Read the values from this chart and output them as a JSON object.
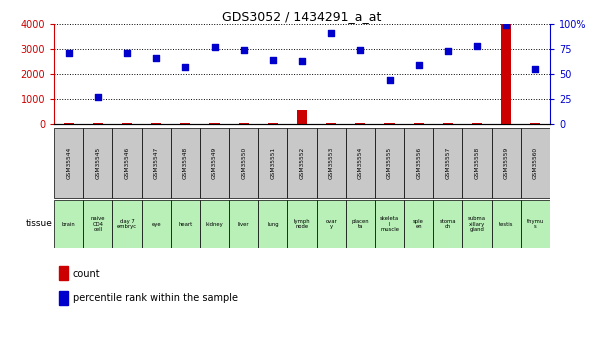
{
  "title": "GDS3052 / 1434291_a_at",
  "samples": [
    "GSM35544",
    "GSM35545",
    "GSM35546",
    "GSM35547",
    "GSM35548",
    "GSM35549",
    "GSM35550",
    "GSM35551",
    "GSM35552",
    "GSM35553",
    "GSM35554",
    "GSM35555",
    "GSM35556",
    "GSM35557",
    "GSM35558",
    "GSM35559",
    "GSM35560"
  ],
  "tissues": [
    "brain",
    "naive\nCD4\ncell",
    "day 7\nembryc",
    "eye",
    "heart",
    "kidney",
    "liver",
    "lung",
    "lymph\nnode",
    "ovar\ny",
    "placen\nta",
    "skeleta\nl\nmuscle",
    "sple\nen",
    "stoma\nch",
    "subma\nxillary\ngland",
    "testis",
    "thymu\ns"
  ],
  "count_values": [
    30,
    30,
    30,
    30,
    30,
    30,
    30,
    30,
    550,
    30,
    30,
    30,
    30,
    30,
    30,
    4000,
    30
  ],
  "percentile_values": [
    71,
    27,
    71,
    66,
    57,
    77,
    74,
    64,
    63,
    91,
    74,
    44,
    59,
    73,
    78,
    99,
    55
  ],
  "left_ylim": [
    0,
    4000
  ],
  "right_ylim": [
    0,
    100
  ],
  "left_yticks": [
    0,
    1000,
    2000,
    3000,
    4000
  ],
  "right_yticks": [
    0,
    25,
    50,
    75,
    100
  ],
  "right_yticklabels": [
    "0",
    "25",
    "50",
    "75",
    "100%"
  ],
  "left_color": "#cc0000",
  "right_color": "#0000cc",
  "bar_color": "#cc0000",
  "dot_color": "#0000cc",
  "grid_color": "#000000",
  "bg_color": "#ffffff",
  "sample_bg": "#c8c8c8",
  "tissue_bg": "#b8f0b8",
  "legend_count_color": "#cc0000",
  "legend_pct_color": "#0000cc"
}
